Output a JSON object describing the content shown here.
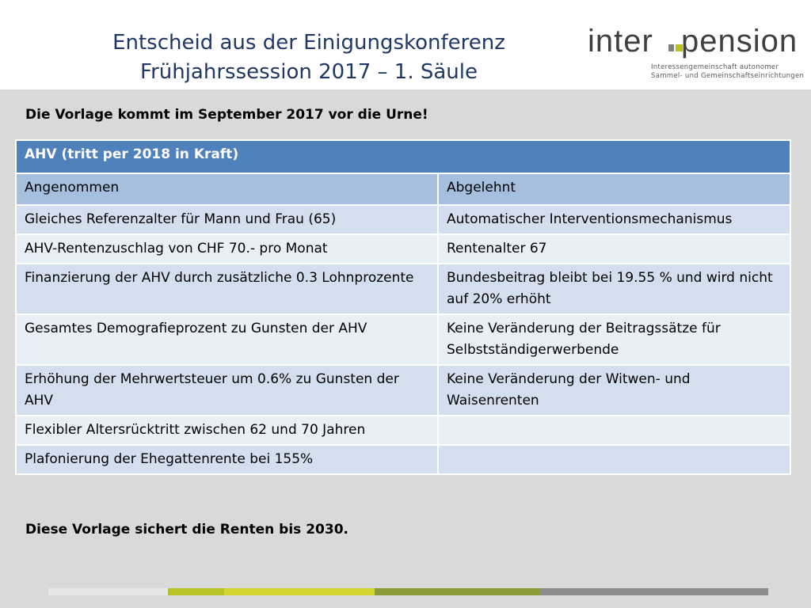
{
  "header": {
    "title_line1": "Entscheid aus der Einigungskonferenz",
    "title_line2": "Frühjahrssession 2017 – 1. Säule",
    "logo": {
      "part1": "inter",
      "part2": "pension",
      "tagline1": "Interessengemeinschaft autonomer",
      "tagline2": "Sammel- und Gemeinschaftseinrichtungen"
    }
  },
  "note_top": "Die Vorlage kommt im September 2017 vor die Urne!",
  "table": {
    "title": "AHV (tritt per 2018 in Kraft)",
    "columns": [
      "Angenommen",
      "Abgelehnt"
    ],
    "rows": [
      [
        "Gleiches Referenzalter für Mann und Frau (65)",
        "Automatischer Interventionsmechanismus"
      ],
      [
        "AHV-Rentenzuschlag von CHF 70.- pro Monat",
        "Rentenalter 67"
      ],
      [
        "Finanzierung der AHV durch zusätzliche 0.3 Lohnprozente",
        "Bundesbeitrag bleibt bei 19.55 % und wird nicht auf 20% erhöht"
      ],
      [
        "Gesamtes Demografieprozent zu Gunsten der AHV",
        "Keine Veränderung der Beitragssätze für Selbstständigerwerbende"
      ],
      [
        "Erhöhung der Mehrwertsteuer um 0.6% zu Gunsten der AHV",
        "Keine Veränderung der Witwen- und Waisenrenten"
      ],
      [
        "Flexibler Altersrücktritt zwischen 62 und 70 Jahren",
        ""
      ],
      [
        "Plafonierung der Ehegattenrente bei 155%",
        ""
      ]
    ]
  },
  "note_bottom": "Diese Vorlage sichert die Renten bis 2030.",
  "colors": {
    "title": "#1f3864",
    "table_header": "#4f81bd",
    "table_subheader": "#a7bfde",
    "row_dark": "#d3dfee",
    "row_light": "#e9eff7",
    "brand_green": "#b6c226"
  }
}
